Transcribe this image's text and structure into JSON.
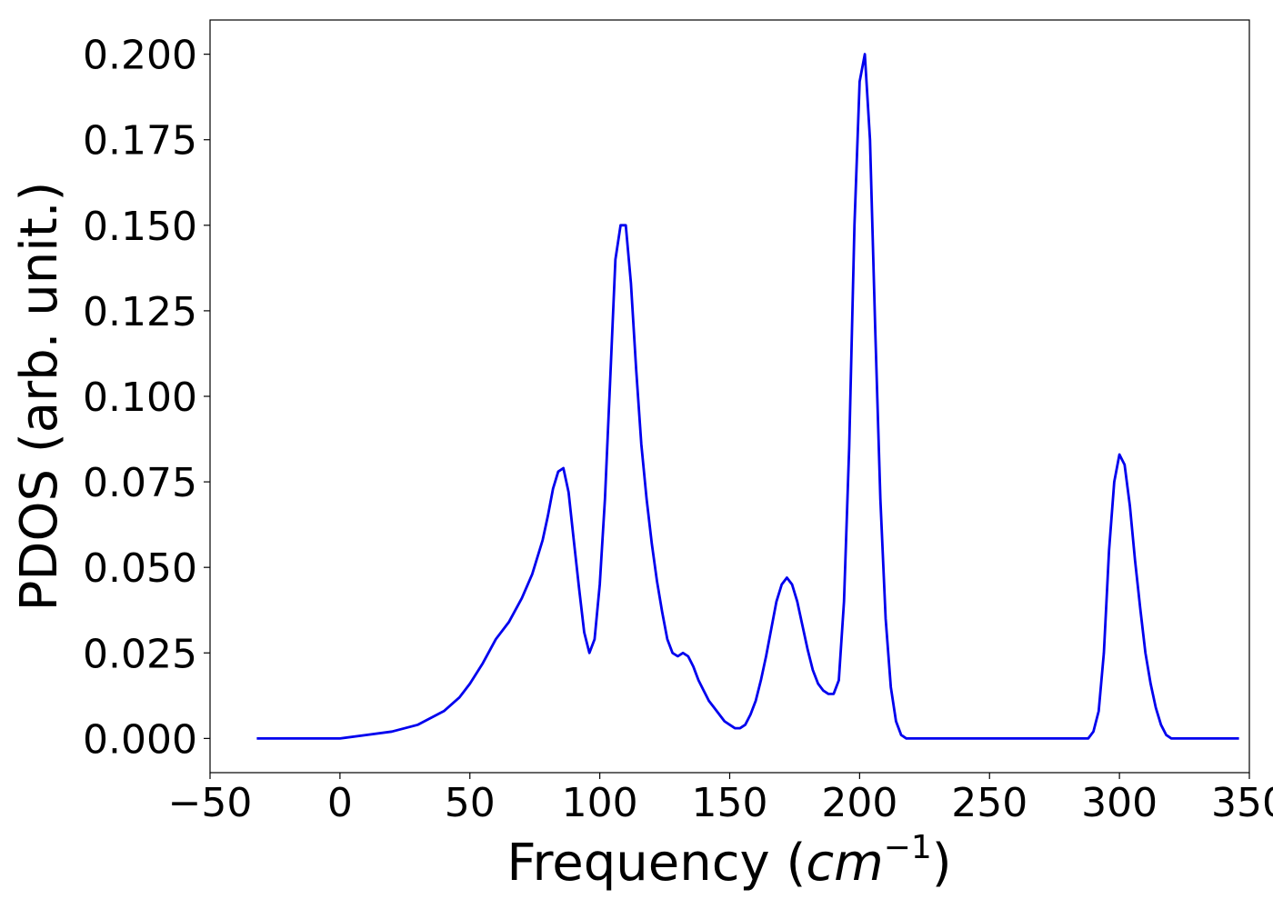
{
  "chart_data": {
    "type": "line",
    "title": "",
    "xlabel": "Frequency",
    "xlabel_unit_base": "cm",
    "xlabel_unit_exp": "−1",
    "ylabel": "PDOS (arb. unit.)",
    "xlim": [
      -50,
      350
    ],
    "ylim": [
      -0.01,
      0.21
    ],
    "xticks": [
      -50,
      0,
      50,
      100,
      150,
      200,
      250,
      300,
      350
    ],
    "xtick_labels": [
      "−50",
      "0",
      "50",
      "100",
      "150",
      "200",
      "250",
      "300",
      "350"
    ],
    "yticks": [
      0.0,
      0.025,
      0.05,
      0.075,
      0.1,
      0.125,
      0.15,
      0.175,
      0.2
    ],
    "ytick_labels": [
      "0.000",
      "0.025",
      "0.050",
      "0.075",
      "0.100",
      "0.125",
      "0.150",
      "0.175",
      "0.200"
    ],
    "grid": false,
    "legend": "none",
    "series": [
      {
        "color": "#0000ee",
        "x": [
          -32,
          -10,
          0,
          10,
          20,
          30,
          40,
          46,
          50,
          55,
          60,
          65,
          70,
          74,
          78,
          80,
          82,
          84,
          86,
          88,
          90,
          92,
          94,
          96,
          98,
          100,
          102,
          104,
          106,
          108,
          110,
          112,
          114,
          116,
          118,
          120,
          122,
          124,
          126,
          128,
          130,
          132,
          134,
          136,
          138,
          140,
          142,
          144,
          146,
          148,
          150,
          152,
          154,
          156,
          158,
          160,
          162,
          164,
          166,
          168,
          170,
          172,
          174,
          176,
          178,
          180,
          182,
          184,
          186,
          188,
          190,
          192,
          194,
          196,
          198,
          200,
          202,
          204,
          206,
          208,
          210,
          212,
          214,
          216,
          218,
          220,
          230,
          250,
          270,
          285,
          288,
          290,
          292,
          294,
          296,
          298,
          300,
          302,
          304,
          306,
          308,
          310,
          312,
          314,
          316,
          318,
          320,
          322,
          325,
          330,
          346
        ],
        "y": [
          0.0,
          0.0,
          0.0,
          0.001,
          0.002,
          0.004,
          0.008,
          0.012,
          0.016,
          0.022,
          0.029,
          0.034,
          0.041,
          0.048,
          0.058,
          0.065,
          0.073,
          0.078,
          0.079,
          0.072,
          0.058,
          0.044,
          0.031,
          0.025,
          0.029,
          0.045,
          0.07,
          0.105,
          0.14,
          0.15,
          0.15,
          0.133,
          0.108,
          0.086,
          0.07,
          0.057,
          0.046,
          0.037,
          0.029,
          0.025,
          0.024,
          0.025,
          0.024,
          0.021,
          0.017,
          0.014,
          0.011,
          0.009,
          0.007,
          0.005,
          0.004,
          0.003,
          0.003,
          0.004,
          0.007,
          0.011,
          0.017,
          0.024,
          0.032,
          0.04,
          0.045,
          0.047,
          0.045,
          0.04,
          0.033,
          0.026,
          0.02,
          0.016,
          0.014,
          0.013,
          0.013,
          0.017,
          0.04,
          0.085,
          0.15,
          0.192,
          0.2,
          0.175,
          0.12,
          0.07,
          0.035,
          0.015,
          0.005,
          0.001,
          0.0,
          0.0,
          0.0,
          0.0,
          0.0,
          0.0,
          0.0,
          0.002,
          0.008,
          0.025,
          0.055,
          0.075,
          0.083,
          0.08,
          0.068,
          0.052,
          0.038,
          0.025,
          0.016,
          0.009,
          0.004,
          0.001,
          0.0,
          0.0,
          0.0,
          0.0,
          0.0
        ]
      }
    ]
  }
}
